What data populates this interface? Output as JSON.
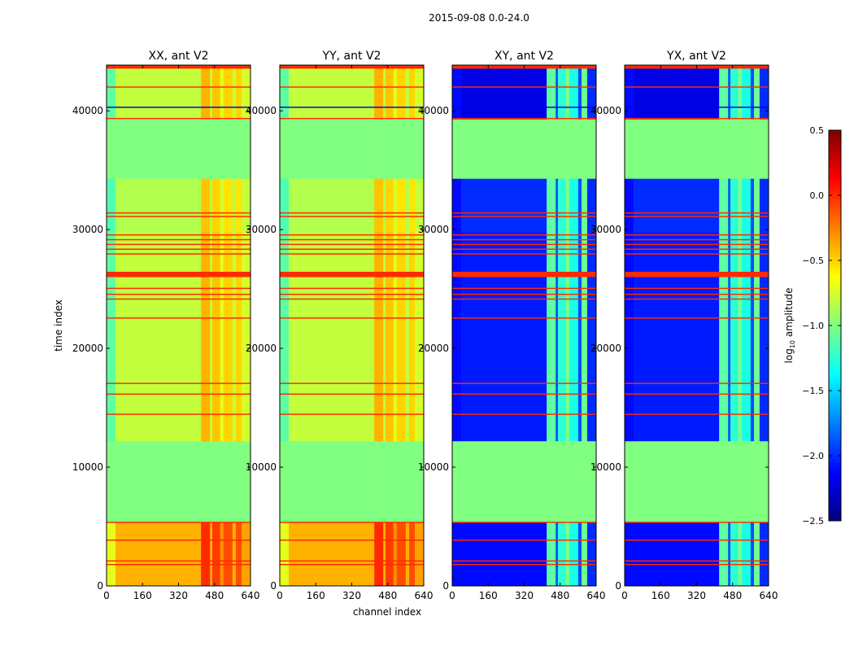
{
  "chart_data": {
    "type": "heatmap",
    "title": "2015-09-08 0.0-24.0",
    "xlabel": "channel index",
    "ylabel": "time index",
    "xlim": [
      0,
      640
    ],
    "ylim": [
      0,
      43850
    ],
    "xticks": [
      "0",
      "160",
      "320",
      "480",
      "640"
    ],
    "xtick_values": [
      0,
      160,
      320,
      480,
      640
    ],
    "yticks": [
      "0",
      "10000",
      "20000",
      "30000",
      "40000"
    ],
    "ytick_values": [
      0,
      10000,
      20000,
      30000,
      40000
    ],
    "panels": [
      {
        "title": "XX, ant V2",
        "kind": "auto"
      },
      {
        "title": "YY, ant V2",
        "kind": "auto"
      },
      {
        "title": "XY, ant V2",
        "kind": "cross"
      },
      {
        "title": "YX, ant V2",
        "kind": "cross"
      }
    ],
    "colorbar": {
      "label_prefix": "log",
      "label_sub": "10",
      "label_suffix": " amplitude",
      "range": [
        -2.5,
        0.5
      ],
      "ticks": [
        "0.5",
        "0.0",
        "−0.5",
        "−1.0",
        "−1.5",
        "−2.0",
        "−2.5"
      ],
      "tick_values": [
        0.5,
        0.0,
        -0.5,
        -1.0,
        -1.5,
        -2.0,
        -2.5
      ],
      "colormap": "jet"
    },
    "time_segments": [
      {
        "t": [
          0,
          5400
        ],
        "auto": -0.4,
        "cross": -2.1,
        "flagged": false
      },
      {
        "t": [
          5400,
          12200
        ],
        "auto": -1.0,
        "cross": -1.0,
        "flagged": true
      },
      {
        "t": [
          12200,
          29800
        ],
        "auto": -0.8,
        "cross": -2.05,
        "flagged": false
      },
      {
        "t": [
          29800,
          34300
        ],
        "auto": -0.85,
        "cross": -2.0,
        "flagged": false
      },
      {
        "t": [
          34300,
          39300
        ],
        "auto": -1.0,
        "cross": -1.0,
        "flagged": true
      },
      {
        "t": [
          39300,
          43850
        ],
        "auto": -0.8,
        "cross": -2.2,
        "flagged": false
      }
    ],
    "channel_bands": [
      {
        "ch": [
          0,
          40
        ],
        "auto_offset": -0.3,
        "cross_value": -2.1
      },
      {
        "ch": [
          40,
          420
        ],
        "auto_offset": 0.0,
        "cross_value": null
      },
      {
        "ch": [
          420,
          460
        ],
        "auto_offset": 0.4,
        "cross_value": -1.1
      },
      {
        "ch": [
          460,
          470
        ],
        "auto_offset": 0.0,
        "cross_value": -1.9
      },
      {
        "ch": [
          470,
          505
        ],
        "auto_offset": 0.35,
        "cross_value": -1.25
      },
      {
        "ch": [
          505,
          520
        ],
        "auto_offset": 0.1,
        "cross_value": -1.0
      },
      {
        "ch": [
          520,
          560
        ],
        "auto_offset": 0.3,
        "cross_value": -1.3
      },
      {
        "ch": [
          560,
          575
        ],
        "auto_offset": 0.0,
        "cross_value": -1.9
      },
      {
        "ch": [
          575,
          600
        ],
        "auto_offset": 0.3,
        "cross_value": -1.05
      },
      {
        "ch": [
          600,
          640
        ],
        "auto_offset": 0.05,
        "cross_value": -2.0
      }
    ],
    "rfi_lines": [
      {
        "t": [
          43550,
          43850
        ],
        "value": 0.0
      },
      {
        "t": [
          41950,
          42050
        ],
        "value": 0.0
      },
      {
        "t": [
          40250,
          40350
        ],
        "value": -2.2
      },
      {
        "t": [
          39300,
          39400
        ],
        "value": 0.0
      },
      {
        "t": [
          31350,
          31450
        ],
        "value": 0.0
      },
      {
        "t": [
          31050,
          31150
        ],
        "value": 0.0
      },
      {
        "t": [
          29500,
          29600
        ],
        "value": 0.0
      },
      {
        "t": [
          29100,
          29200
        ],
        "value": 0.0
      },
      {
        "t": [
          28700,
          28800
        ],
        "value": 0.0
      },
      {
        "t": [
          28300,
          28400
        ],
        "value": 0.0
      },
      {
        "t": [
          27900,
          28000
        ],
        "value": 0.0
      },
      {
        "t": [
          26000,
          26450
        ],
        "value": 0.0
      },
      {
        "t": [
          25000,
          25100
        ],
        "value": 0.0
      },
      {
        "t": [
          24500,
          24600
        ],
        "value": 0.0
      },
      {
        "t": [
          24100,
          24200
        ],
        "value": 0.0
      },
      {
        "t": [
          22500,
          22600
        ],
        "value": 0.0
      },
      {
        "t": [
          17000,
          17100
        ],
        "value": 0.0
      },
      {
        "t": [
          16100,
          16200
        ],
        "value": 0.0
      },
      {
        "t": [
          14400,
          14500
        ],
        "value": 0.0
      },
      {
        "t": [
          5300,
          5400
        ],
        "value": 0.0
      },
      {
        "t": [
          3800,
          3900
        ],
        "value": 0.0
      },
      {
        "t": [
          2050,
          2150
        ],
        "value": 0.0
      },
      {
        "t": [
          1750,
          1850
        ],
        "value": 0.0
      }
    ]
  }
}
